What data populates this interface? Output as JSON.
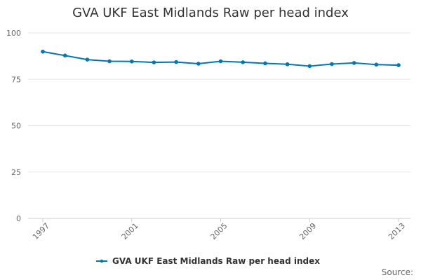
{
  "chart_data": {
    "type": "line",
    "title": "GVA UKF East Midlands Raw per head index",
    "xlabel": "",
    "ylabel": "",
    "x": [
      1997,
      1998,
      1999,
      2000,
      2001,
      2002,
      2003,
      2004,
      2005,
      2006,
      2007,
      2008,
      2009,
      2010,
      2011,
      2012,
      2013
    ],
    "x_tick_labels": [
      "1997",
      "2001",
      "2005",
      "2009",
      "2013"
    ],
    "xlim": [
      1997,
      2013
    ],
    "ylim": [
      0,
      100
    ],
    "y_ticks": [
      0,
      25,
      50,
      75,
      100
    ],
    "grid": true,
    "series": [
      {
        "name": "GVA UKF East Midlands Raw per head index",
        "values": [
          89.9,
          87.8,
          85.6,
          84.7,
          84.6,
          84.1,
          84.3,
          83.4,
          84.7,
          84.2,
          83.6,
          83.1,
          82.1,
          83.2,
          83.8,
          82.9,
          82.6
        ]
      }
    ],
    "legend": "bottom-center",
    "source_label": "Source:",
    "colors": {
      "series": "#0077b6",
      "grid": "#e6e6e6",
      "axis": "#cccccc",
      "text": "#333333",
      "muted_text": "#666666"
    }
  }
}
